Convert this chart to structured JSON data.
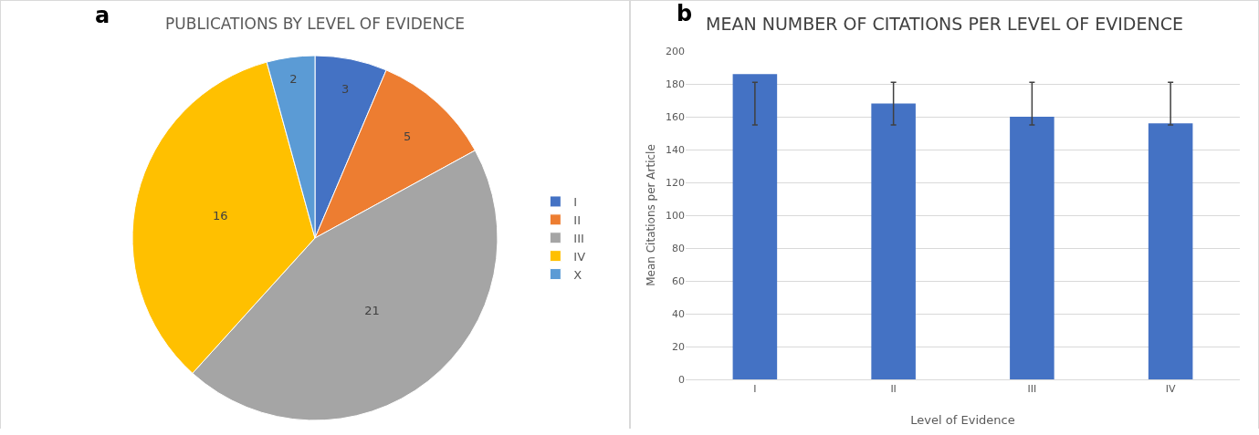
{
  "chart_data": [
    {
      "type": "pie",
      "title": "PUBLICATIONS BY LEVEL OF EVIDENCE",
      "annotations": [
        "a"
      ],
      "categories": [
        "I",
        "II",
        "III",
        "IV",
        "X"
      ],
      "values": [
        3,
        5,
        21,
        16,
        2
      ],
      "colors": [
        "#4472c4",
        "#ed7d31",
        "#a5a5a5",
        "#ffc000",
        "#5b9bd5"
      ],
      "data_labels": true,
      "legend": "right"
    },
    {
      "type": "bar",
      "title": "MEAN NUMBER OF CITATIONS PER LEVEL OF EVIDENCE",
      "annotations": [
        "b"
      ],
      "xlabel": "Level of Evidence",
      "ylabel": "Mean Citations per Article",
      "categories": [
        "I",
        "II",
        "III",
        "IV"
      ],
      "values": [
        186,
        168,
        160,
        156
      ],
      "errors": [
        [
          155,
          181
        ],
        [
          155,
          181
        ],
        [
          155,
          181
        ],
        [
          155,
          181
        ]
      ],
      "color": "#4472c4",
      "ylim": [
        0,
        200
      ],
      "yticks": [
        0,
        20,
        40,
        60,
        80,
        100,
        120,
        140,
        160,
        180,
        200
      ],
      "grid": "y",
      "legend": false
    }
  ]
}
